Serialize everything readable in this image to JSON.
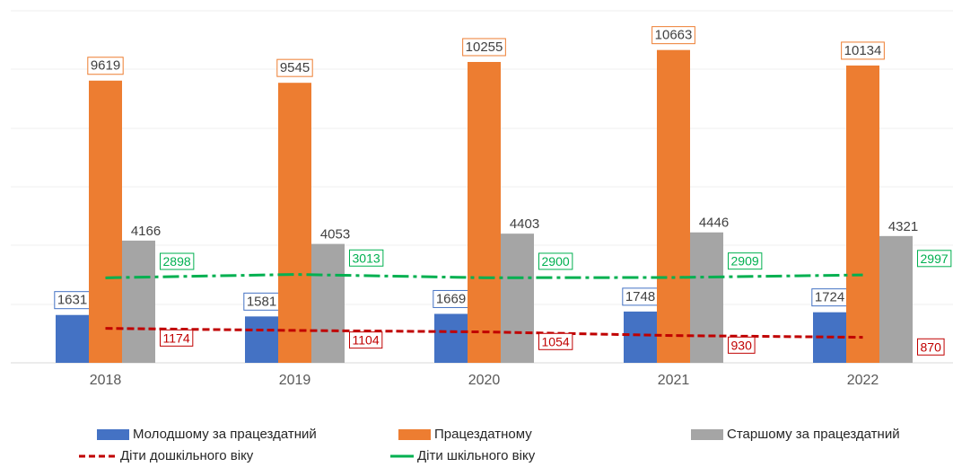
{
  "chart_data": {
    "type": "bar",
    "categories": [
      "2018",
      "2019",
      "2020",
      "2021",
      "2022"
    ],
    "ylim": [
      0,
      12000
    ],
    "series": [
      {
        "name": "Молодшому за працездатний",
        "color": "#4472c4",
        "values": [
          1631,
          1581,
          1669,
          1748,
          1724
        ]
      },
      {
        "name": "Працездатному",
        "color": "#ed7d31",
        "values": [
          9619,
          9545,
          10255,
          10663,
          10134
        ]
      },
      {
        "name": "Старшому за працездатний",
        "color": "#a5a5a5",
        "values": [
          4166,
          4053,
          4403,
          4446,
          4321
        ]
      },
      {
        "name": "Діти дошкільного віку",
        "type": "line",
        "style": "dashed",
        "color": "#c00000",
        "values": [
          1174,
          1104,
          1054,
          930,
          870
        ]
      },
      {
        "name": "Діти шкільного віку",
        "type": "line",
        "style": "dashdot",
        "color": "#00b050",
        "values": [
          2898,
          3013,
          2900,
          2909,
          2997
        ]
      }
    ]
  }
}
